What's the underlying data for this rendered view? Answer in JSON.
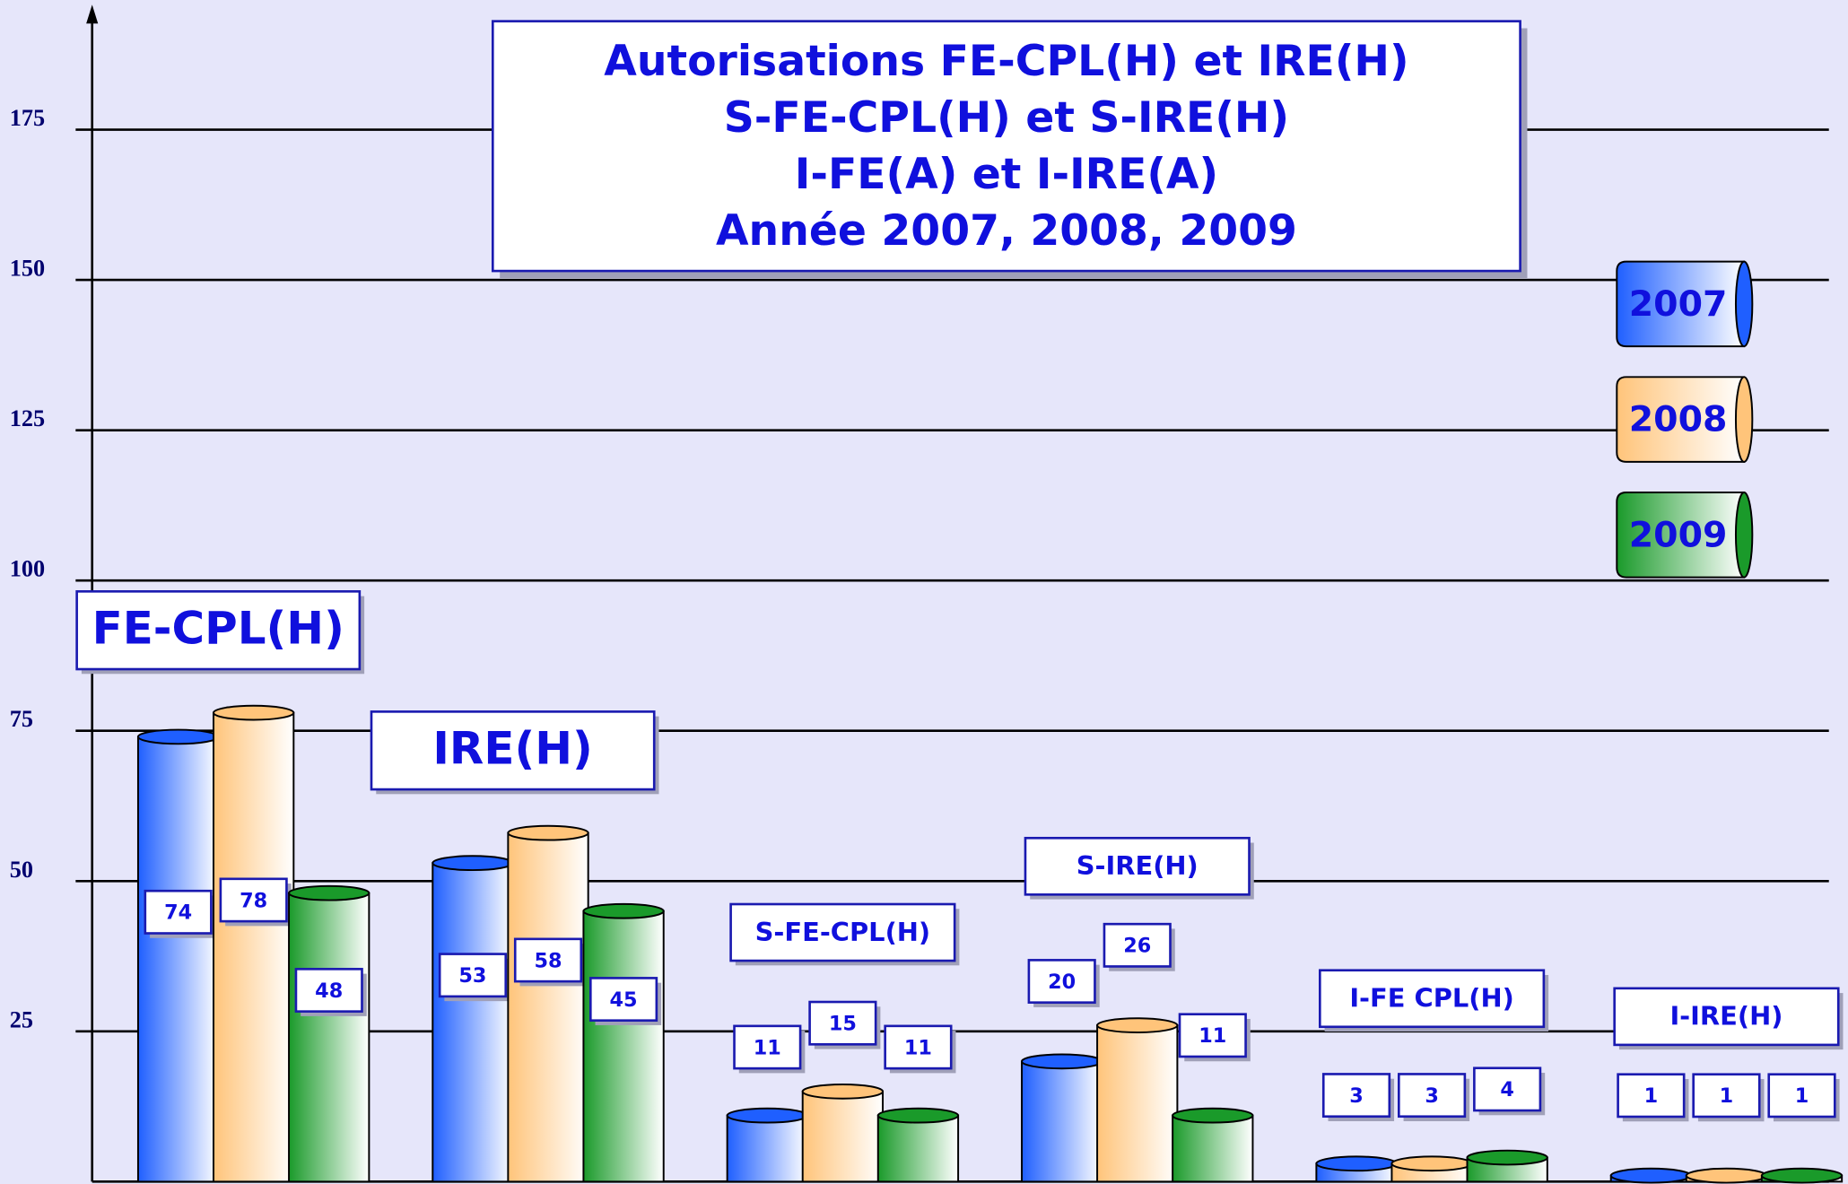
{
  "chart_data": {
    "type": "bar",
    "title": [
      "Autorisations FE-CPL(H) et IRE(H)",
      "S-FE-CPL(H) et S-IRE(H)",
      "I-FE(A) et I-IRE(A)",
      "Année 2007, 2008, 2009"
    ],
    "categories": [
      "FE-CPL(H)",
      "IRE(H)",
      "S-FE-CPL(H)",
      "S-IRE(H)",
      "I-FE CPL(H)",
      "I-IRE(H)"
    ],
    "series": [
      {
        "name": "2007",
        "color": "#1f5fff",
        "values": [
          74,
          53,
          11,
          20,
          3,
          1
        ]
      },
      {
        "name": "2008",
        "color": "#ffc47a",
        "values": [
          78,
          58,
          15,
          26,
          3,
          1
        ]
      },
      {
        "name": "2009",
        "color": "#1a9a2a",
        "values": [
          48,
          45,
          11,
          11,
          4,
          1
        ]
      }
    ],
    "ylim": [
      0,
      195
    ],
    "yticks": [
      25,
      50,
      75,
      100,
      125,
      150,
      175
    ],
    "grid": true
  }
}
